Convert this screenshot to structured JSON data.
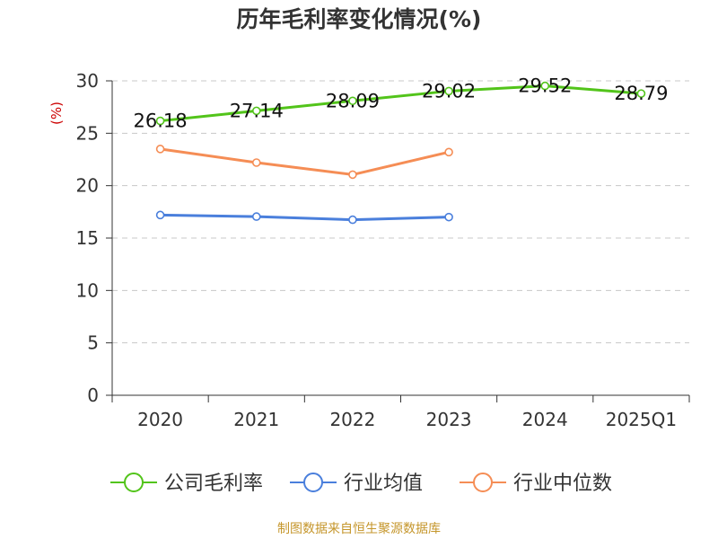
{
  "title": "历年毛利率变化情况(%)",
  "source": "制图数据来自恒生聚源数据库",
  "chart_data": {
    "type": "line",
    "title": "历年毛利率变化情况(%)",
    "ylabel": "(%)",
    "xlabel": "",
    "categories": [
      "2020",
      "2021",
      "2022",
      "2023",
      "2024",
      "2025Q1"
    ],
    "ylim": [
      0,
      30
    ],
    "yticks": [
      0,
      5,
      10,
      15,
      20,
      25,
      30
    ],
    "grid": true,
    "legend_position": "bottom",
    "series": [
      {
        "name": "公司毛利率",
        "color": "#52c41a",
        "show_labels": true,
        "values": [
          26.18,
          27.14,
          28.09,
          29.02,
          29.52,
          28.79
        ],
        "labels": [
          "26.18",
          "27.14",
          "28.09",
          "29.02",
          "29.52",
          "28.79"
        ]
      },
      {
        "name": "行业均值",
        "color": "#4a7fdc",
        "show_labels": false,
        "values": [
          17.2,
          17.05,
          16.75,
          17.0,
          null,
          null
        ]
      },
      {
        "name": "行业中位数",
        "color": "#f58d55",
        "show_labels": false,
        "values": [
          23.5,
          22.2,
          21.05,
          23.2,
          null,
          null
        ]
      }
    ]
  }
}
